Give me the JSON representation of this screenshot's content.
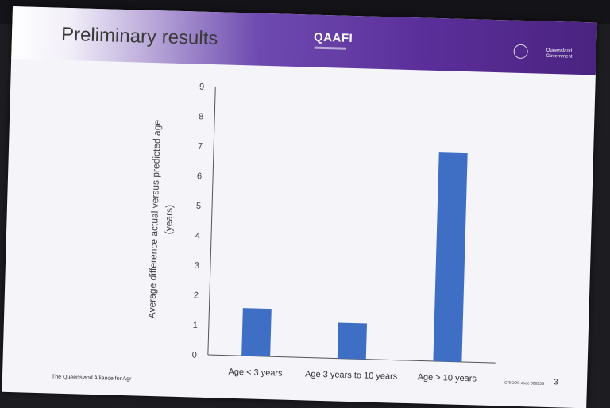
{
  "slide": {
    "brand": "QAAFI",
    "government": [
      "Queensland",
      "Government"
    ],
    "title": "Preliminary results",
    "footer": "The Queensland Alliance for Agr",
    "code": "CRICOS code 00025B",
    "page_number": "3"
  },
  "colors": {
    "bar": "#3f6fc4",
    "band": "#5b2f9a"
  },
  "chart_data": {
    "type": "bar",
    "categories": [
      "Age < 3 years",
      "Age 3 years to 10 years",
      "Age > 10 years"
    ],
    "values": [
      1.6,
      1.2,
      7.0
    ],
    "title": "",
    "xlabel": "",
    "ylabel": [
      "Average difference actual versus predicted age",
      "(years)"
    ],
    "ylim": [
      0,
      9
    ],
    "yticks": [
      "0",
      "1",
      "2",
      "3",
      "4",
      "5",
      "6",
      "7",
      "8",
      "9"
    ],
    "grid": false
  }
}
